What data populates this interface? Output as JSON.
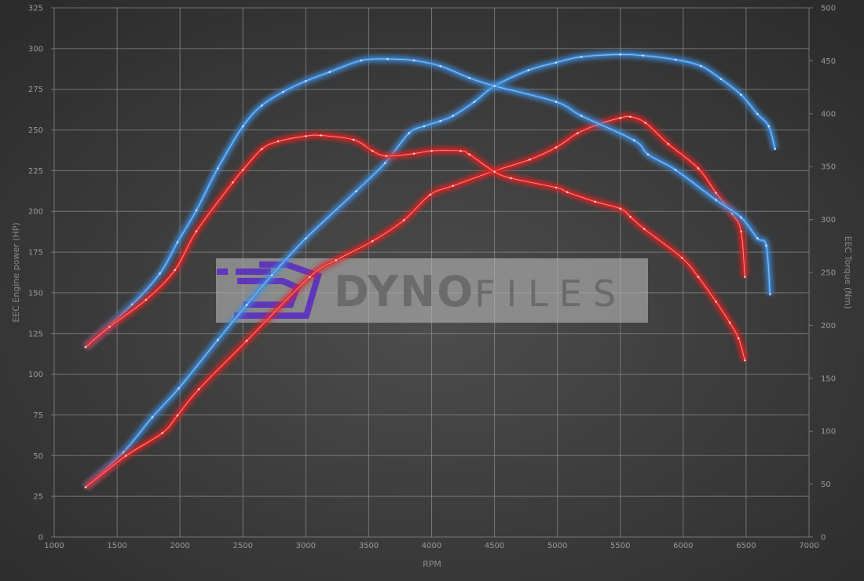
{
  "chart_data": {
    "type": "line",
    "xlabel": "RPM",
    "ylabel_left": "EEC Engine power (HP)",
    "ylabel_right": "EEC Torque (Nm)",
    "xlim": [
      1000,
      7000
    ],
    "ylim_left": [
      0,
      325
    ],
    "ylim_right": [
      0,
      500
    ],
    "x_ticks": [
      "1000",
      "1500",
      "2000",
      "2500",
      "3000",
      "3500",
      "4000",
      "4500",
      "5000",
      "5500",
      "6000",
      "6500",
      "7000"
    ],
    "y_left_ticks": [
      "0",
      "25",
      "50",
      "75",
      "100",
      "125",
      "150",
      "175",
      "200",
      "225",
      "250",
      "275",
      "300",
      "325"
    ],
    "y_right_ticks": [
      "0",
      "50",
      "100",
      "150",
      "200",
      "250",
      "300",
      "350",
      "400",
      "450",
      "500"
    ],
    "grid": true,
    "series": [
      {
        "axis": "left",
        "color": "#3d8ee0",
        "x": [
          1250,
          1550,
          1780,
          1990,
          2300,
          2530,
          2730,
          3000,
          3400,
          3630,
          3820,
          3940,
          4070,
          4170,
          4340,
          4500,
          4770,
          4990,
          5190,
          5500,
          5680,
          5940,
          6140,
          6300,
          6460,
          6590,
          6680,
          6730
        ],
        "y": [
          30.6,
          52.1,
          73.6,
          91.3,
          121,
          142.5,
          160.8,
          183.4,
          212.4,
          229.7,
          248,
          252.3,
          255.5,
          258.7,
          267.3,
          277,
          286.7,
          291.4,
          294.9,
          296.4,
          295.7,
          293.2,
          289.3,
          281.3,
          271.6,
          259.8,
          252.3,
          238.3
        ]
      },
      {
        "axis": "left",
        "color": "#e42222",
        "x": [
          1250,
          1570,
          1860,
          1980,
          2150,
          2530,
          3030,
          3240,
          3530,
          3780,
          3990,
          4170,
          4500,
          4780,
          4990,
          5160,
          5320,
          5500,
          5580,
          5700,
          5880,
          6120,
          6260,
          6390,
          6460,
          6490
        ],
        "y": [
          30.6,
          49.9,
          63.9,
          74.7,
          90.8,
          120.5,
          159.7,
          170,
          181.7,
          194.6,
          210.3,
          215.7,
          224.9,
          231.8,
          239.3,
          248,
          253.3,
          257.4,
          258.1,
          254.4,
          241.5,
          226.4,
          211.4,
          198.4,
          187.7,
          159.7
        ]
      },
      {
        "axis": "right",
        "color": "#3d8ee0",
        "x": [
          1250,
          1620,
          1840,
          1980,
          2130,
          2300,
          2500,
          2650,
          2820,
          3000,
          3190,
          3440,
          3650,
          3860,
          4070,
          4300,
          4500,
          4990,
          5190,
          5610,
          5720,
          5940,
          6260,
          6460,
          6590,
          6660,
          6690
        ],
        "y": [
          179.5,
          219.8,
          249,
          278.5,
          308.6,
          348.3,
          388,
          407.7,
          420.6,
          430.8,
          439.4,
          450.3,
          451.7,
          450.3,
          445,
          433.8,
          426.2,
          411.2,
          398,
          374.8,
          361.5,
          346.8,
          318.5,
          302,
          282.2,
          275.4,
          229.2
        ]
      },
      {
        "axis": "right",
        "color": "#e42222",
        "x": [
          1250,
          1440,
          1730,
          1960,
          2130,
          2420,
          2500,
          2650,
          2780,
          3000,
          3120,
          3380,
          3530,
          3640,
          3860,
          4000,
          4230,
          4300,
          4500,
          4630,
          4990,
          5080,
          5300,
          5500,
          5580,
          5690,
          5990,
          6120,
          6260,
          6370,
          6440,
          6490
        ],
        "y": [
          179.5,
          198.6,
          224.2,
          252.3,
          288.8,
          335.1,
          346.8,
          366.6,
          373.8,
          378.8,
          379.5,
          375.4,
          364.9,
          360,
          362.3,
          364.9,
          364.9,
          361.5,
          345.1,
          339.1,
          330.2,
          325.8,
          316.9,
          310.3,
          302.6,
          291.1,
          263.8,
          245.7,
          222.5,
          202.6,
          187.7,
          166.9
        ]
      }
    ]
  },
  "watermark": {
    "text_bold": "DYNO",
    "text_light": "FILES",
    "logo_color": "#5a2fc0"
  }
}
